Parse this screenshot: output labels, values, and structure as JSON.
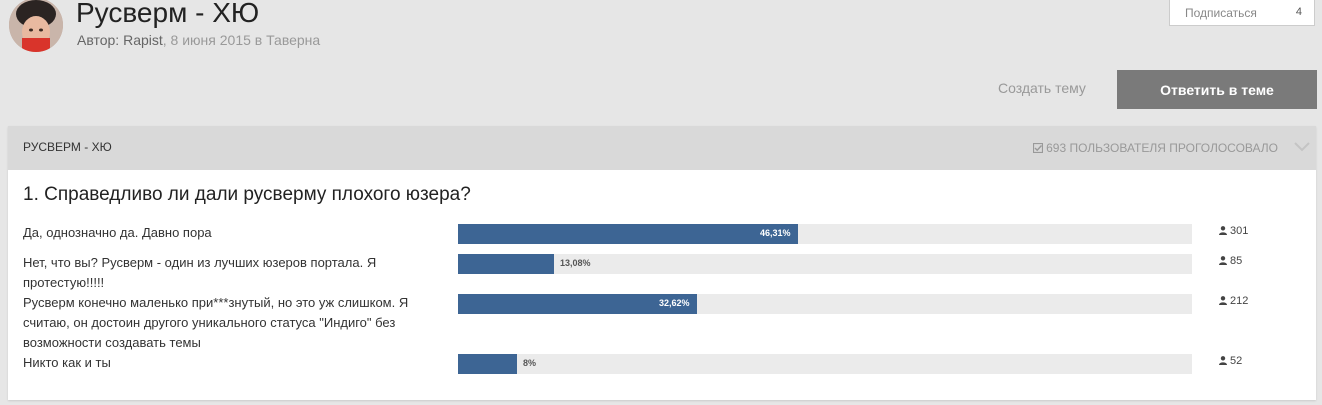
{
  "topic": {
    "title": "Русверм - ХЮ",
    "author_prefix": "Автор: ",
    "author": "Rapist",
    "date_forum": ", 8 июня 2015 в Таверна"
  },
  "follow": {
    "label": "Подписаться",
    "count": "4"
  },
  "actions": {
    "create_topic": "Создать тему",
    "reply": "Ответить в теме"
  },
  "poll": {
    "title": "РУСВЕРМ - ХЮ",
    "voters_label": "693 пользователя проголосовало",
    "question": "1. Справедливо ли дали русверму плохого юзера?",
    "options": [
      {
        "text": "Да, однозначно да. Давно пора",
        "percent_label": "46,31%",
        "percent": 46.31,
        "votes": "301"
      },
      {
        "text": "Нет, что вы? Русверм - один из лучших юзеров портала. Я протестую!!!!!",
        "percent_label": "13,08%",
        "percent": 13.08,
        "votes": "85"
      },
      {
        "text": "Русверм конечно маленько при***знутый, но это уж слишком. Я считаю, он достоин другого уникального статуса \"Индиго\" без возможности создавать темы",
        "percent_label": "32,62%",
        "percent": 32.62,
        "votes": "212"
      },
      {
        "text": "Никто как и ты",
        "percent_label": "8%",
        "percent": 8,
        "votes": "52"
      }
    ]
  },
  "colors": {
    "bar": "#3d6594",
    "reply_button": "#7a7a7a",
    "track": "#ebebeb"
  },
  "icons": {
    "voters": "check-square-icon",
    "collapse": "chevron-down-icon",
    "votes": "user-icon"
  }
}
